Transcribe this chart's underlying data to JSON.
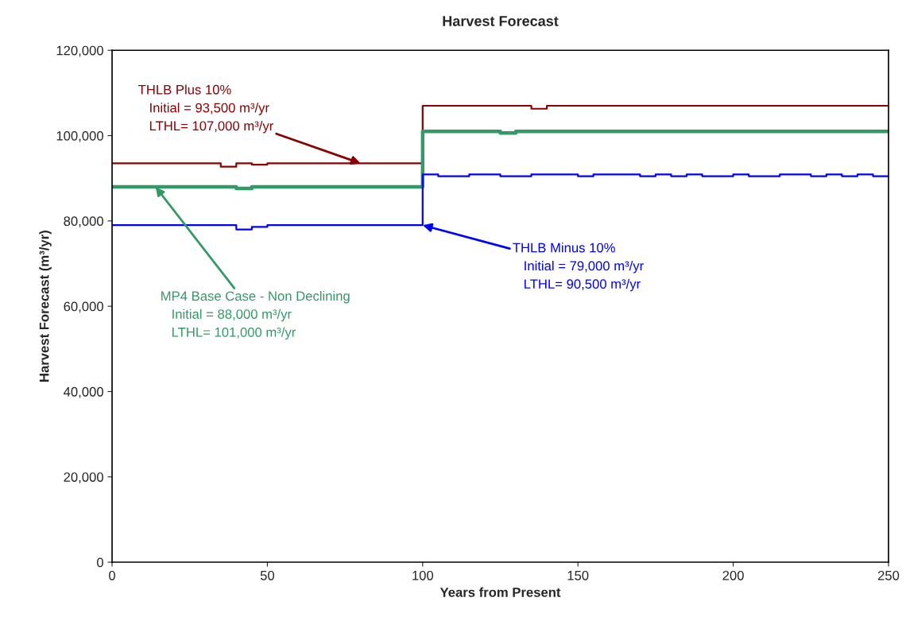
{
  "chart_data": {
    "type": "step",
    "title": "Harvest Forecast",
    "xlabel": "Years from Present",
    "ylabel": "Harvest Forecast (m³/yr)",
    "xlim": [
      0,
      250
    ],
    "xticks": [
      0,
      50,
      100,
      150,
      200,
      250
    ],
    "ylim": [
      0,
      120000
    ],
    "yticks": [
      {
        "value": 0,
        "label": "0"
      },
      {
        "value": 20000,
        "label": "20,000"
      },
      {
        "value": 40000,
        "label": "40,000"
      },
      {
        "value": 60000,
        "label": "60,000"
      },
      {
        "value": 80000,
        "label": "80,000"
      },
      {
        "value": 100000,
        "label": "100,000"
      },
      {
        "value": 120000,
        "label": "120,000"
      }
    ],
    "grid": false,
    "series": [
      {
        "color": "#8b0000",
        "x": [
          0,
          35,
          40,
          45,
          50,
          100,
          135,
          140,
          250
        ],
        "values": [
          93500,
          92700,
          93500,
          93200,
          93500,
          107000,
          106300,
          107000,
          107000
        ]
      },
      {
        "color": "#339966",
        "x": [
          0,
          40,
          45,
          100,
          125,
          130,
          250
        ],
        "values": [
          88000,
          87600,
          88000,
          101000,
          100600,
          101000,
          101000
        ]
      },
      {
        "color": "#0000ff",
        "x": [
          0,
          40,
          45,
          50,
          100,
          105,
          115,
          125,
          135,
          150,
          155,
          170,
          175,
          180,
          185,
          190,
          200,
          205,
          215,
          225,
          230,
          235,
          240,
          245,
          250
        ],
        "values": [
          79000,
          78000,
          78600,
          79000,
          90900,
          90500,
          90900,
          90500,
          90900,
          90500,
          90900,
          90500,
          90900,
          90500,
          90900,
          90500,
          90900,
          90500,
          90900,
          90500,
          90900,
          90500,
          90900,
          90500,
          90500
        ]
      }
    ],
    "annotations": [
      {
        "text": "THLB Plus 10%\n   Initial = 93,500 m³/yr\n   LTHL= 107,000 m³/yr",
        "x": 80,
        "y": 93500
      },
      {
        "text": "MP4 Base Case - Non Declining\n   Initial = 88,000 m³/yr\n   LTHL= 101,000 m³/yr",
        "x": 14,
        "y": 88000
      },
      {
        "text": "THLB Minus 10%\n   Initial = 79,000 m³/yr\n   LTHL= 90,500 m³/yr",
        "x": 100,
        "y": 79000
      }
    ]
  }
}
